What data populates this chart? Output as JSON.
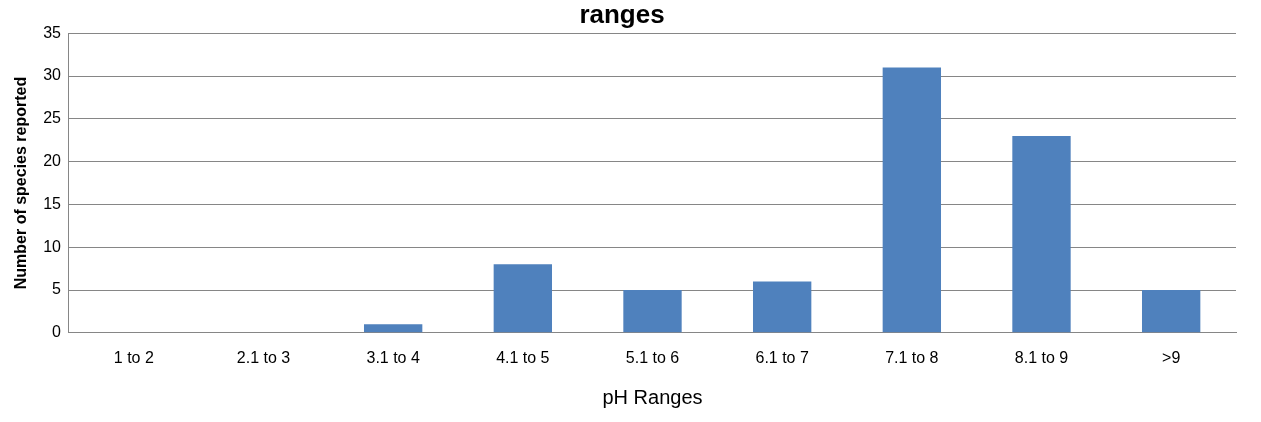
{
  "chart_data": {
    "type": "bar",
    "title": "ranges",
    "xlabel": "pH Ranges",
    "ylabel": "Number of species reported",
    "categories": [
      "1 to 2",
      "2.1 to 3",
      "3.1 to 4",
      "4.1 to 5",
      "5.1 to 6",
      "6.1 to 7",
      "7.1 to 8",
      "8.1 to 9",
      ">9"
    ],
    "values": [
      0,
      0,
      1,
      8,
      5,
      6,
      31,
      23,
      5
    ],
    "color": "#4f81bd",
    "ylim": [
      0,
      35
    ],
    "yticks": [
      0,
      5,
      10,
      15,
      20,
      25,
      30,
      35
    ],
    "grid": "y"
  }
}
